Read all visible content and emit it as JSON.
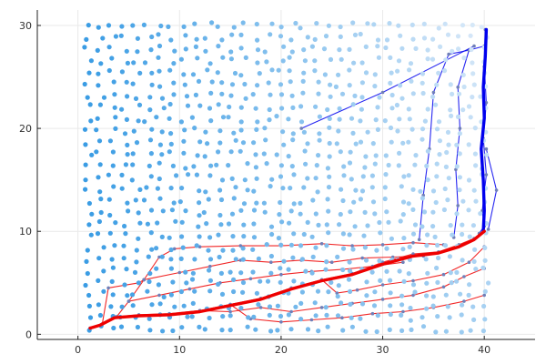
{
  "chart_data": {
    "type": "scatter",
    "title": "",
    "xlabel": "",
    "ylabel": "",
    "xlim": [
      -4,
      45
    ],
    "ylim": [
      -0.5,
      31.5
    ],
    "x_ticks": [
      0,
      10,
      20,
      30,
      40
    ],
    "y_ticks": [
      0,
      10,
      20,
      30
    ],
    "grid": true,
    "legend": "none",
    "series": [
      {
        "kind": "points",
        "color_gradient": [
          "#1f8fe0",
          "#dbeaf9"
        ],
        "grid_x": [
          1,
          40
        ],
        "grid_y": [
          0.5,
          30
        ],
        "cols": 34,
        "rows": 27
      },
      {
        "kind": "path",
        "color": "#0000ee",
        "points": [
          [
            40.1,
            29.6
          ],
          [
            40.0,
            26.0
          ],
          [
            40.2,
            22.5
          ],
          [
            39.9,
            19.0
          ],
          [
            40.2,
            15.5
          ],
          [
            39.8,
            12.0
          ],
          [
            40.0,
            10.5
          ],
          [
            39.5,
            9.8
          ]
        ]
      },
      {
        "kind": "path",
        "color": "#0000ee",
        "points": [
          [
            40.0,
            28.0
          ],
          [
            38.5,
            27.6
          ],
          [
            37.4,
            24.0
          ],
          [
            37.6,
            20.0
          ],
          [
            37.2,
            16.0
          ],
          [
            37.4,
            12.5
          ],
          [
            37.0,
            9.4
          ]
        ]
      },
      {
        "kind": "path",
        "color": "#0000ee",
        "points": [
          [
            38.5,
            27.6
          ],
          [
            36.5,
            27.2
          ],
          [
            35.0,
            23.5
          ],
          [
            34.6,
            18.0
          ],
          [
            34.0,
            13.5
          ],
          [
            33.6,
            9.2
          ]
        ]
      },
      {
        "kind": "path",
        "color": "#0000ee",
        "points": [
          [
            40.2,
            18.0
          ],
          [
            41.2,
            14.0
          ],
          [
            40.4,
            10.2
          ]
        ]
      },
      {
        "kind": "path",
        "color": "#0000ee",
        "points": [
          [
            39.0,
            28.0
          ],
          [
            30.0,
            23.5
          ],
          [
            22.0,
            20.0
          ]
        ]
      },
      {
        "kind": "path",
        "color": "#ee0000",
        "points": [
          [
            1.2,
            0.6
          ],
          [
            2.4,
            1.0
          ],
          [
            3.8,
            1.7
          ],
          [
            6.0,
            1.9
          ],
          [
            9.0,
            2.0
          ],
          [
            12.0,
            2.3
          ],
          [
            15.0,
            2.9
          ],
          [
            18.0,
            3.5
          ],
          [
            21.0,
            4.5
          ],
          [
            24.0,
            5.3
          ],
          [
            27.0,
            5.9
          ],
          [
            30.0,
            7.0
          ],
          [
            33.0,
            7.8
          ],
          [
            35.5,
            8.0
          ],
          [
            37.5,
            8.7
          ],
          [
            39.0,
            9.3
          ],
          [
            40.0,
            10.0
          ]
        ]
      },
      {
        "kind": "path",
        "color": "#ee0000",
        "points": [
          [
            3.8,
            1.7
          ],
          [
            5.0,
            3.2
          ],
          [
            6.5,
            5.3
          ],
          [
            8.0,
            7.5
          ],
          [
            9.5,
            8.3
          ],
          [
            12.0,
            8.5
          ],
          [
            16.0,
            8.6
          ],
          [
            20.0,
            8.6
          ],
          [
            24.0,
            8.8
          ],
          [
            27.0,
            8.6
          ],
          [
            30.0,
            8.7
          ],
          [
            33.0,
            8.9
          ],
          [
            36.0,
            8.7
          ]
        ]
      },
      {
        "kind": "path",
        "color": "#ee0000",
        "points": [
          [
            6.5,
            5.3
          ],
          [
            10.0,
            6.0
          ],
          [
            13.0,
            6.6
          ],
          [
            16.0,
            7.2
          ],
          [
            19.0,
            7.0
          ],
          [
            22.0,
            7.2
          ],
          [
            25.0,
            7.0
          ],
          [
            28.0,
            7.4
          ],
          [
            31.0,
            7.5
          ],
          [
            34.0,
            7.6
          ]
        ]
      },
      {
        "kind": "path",
        "color": "#ee0000",
        "points": [
          [
            5.0,
            3.2
          ],
          [
            8.0,
            3.8
          ],
          [
            11.0,
            4.4
          ],
          [
            14.0,
            5.0
          ],
          [
            17.0,
            5.4
          ],
          [
            20.0,
            5.8
          ],
          [
            23.0,
            6.1
          ],
          [
            26.0,
            6.3
          ],
          [
            29.0,
            6.6
          ],
          [
            32.0,
            7.0
          ]
        ]
      },
      {
        "kind": "path",
        "color": "#ee0000",
        "points": [
          [
            12.0,
            2.3
          ],
          [
            15.0,
            2.2
          ],
          [
            18.0,
            2.6
          ],
          [
            21.0,
            2.2
          ],
          [
            24.0,
            2.6
          ],
          [
            27.0,
            3.0
          ],
          [
            30.0,
            3.4
          ],
          [
            33.0,
            3.8
          ],
          [
            36.0,
            4.6
          ],
          [
            38.0,
            5.6
          ],
          [
            40.0,
            6.4
          ]
        ]
      },
      {
        "kind": "path",
        "color": "#ee0000",
        "points": [
          [
            15.0,
            2.9
          ],
          [
            17.0,
            1.5
          ],
          [
            20.0,
            1.2
          ],
          [
            23.0,
            1.4
          ],
          [
            26.0,
            1.6
          ],
          [
            29.0,
            2.0
          ],
          [
            32.0,
            2.2
          ],
          [
            35.0,
            2.6
          ],
          [
            38.0,
            3.2
          ],
          [
            40.0,
            3.8
          ]
        ]
      },
      {
        "kind": "path",
        "color": "#ee0000",
        "points": [
          [
            2.4,
            1.0
          ],
          [
            3.0,
            4.5
          ],
          [
            6.0,
            5.0
          ],
          [
            6.5,
            5.3
          ]
        ]
      },
      {
        "kind": "path",
        "color": "#ee0000",
        "points": [
          [
            24.0,
            5.3
          ],
          [
            25.5,
            4.0
          ],
          [
            27.5,
            4.3
          ],
          [
            30.0,
            4.8
          ],
          [
            33.0,
            5.2
          ],
          [
            36.0,
            5.8
          ],
          [
            38.5,
            7.0
          ],
          [
            40.0,
            8.5
          ]
        ]
      }
    ],
    "highlight_paths": [
      {
        "color": "#0000ee",
        "points": [
          [
            40.2,
            29.6
          ],
          [
            40.1,
            27.0
          ],
          [
            39.9,
            24.0
          ],
          [
            40.0,
            21.0
          ],
          [
            39.7,
            18.0
          ],
          [
            39.9,
            15.0
          ],
          [
            40.0,
            12.0
          ],
          [
            39.9,
            10.0
          ]
        ]
      },
      {
        "color": "#ee0000",
        "points": [
          [
            1.2,
            0.6
          ],
          [
            2.2,
            0.9
          ],
          [
            3.6,
            1.6
          ],
          [
            6.0,
            1.8
          ],
          [
            9.0,
            1.9
          ],
          [
            12.0,
            2.2
          ],
          [
            15.0,
            2.8
          ],
          [
            18.0,
            3.4
          ],
          [
            21.0,
            4.4
          ],
          [
            24.0,
            5.2
          ],
          [
            27.0,
            5.8
          ],
          [
            30.0,
            6.8
          ],
          [
            33.0,
            7.6
          ],
          [
            35.5,
            7.9
          ],
          [
            37.5,
            8.5
          ],
          [
            39.0,
            9.2
          ],
          [
            40.0,
            10.0
          ]
        ]
      }
    ]
  }
}
